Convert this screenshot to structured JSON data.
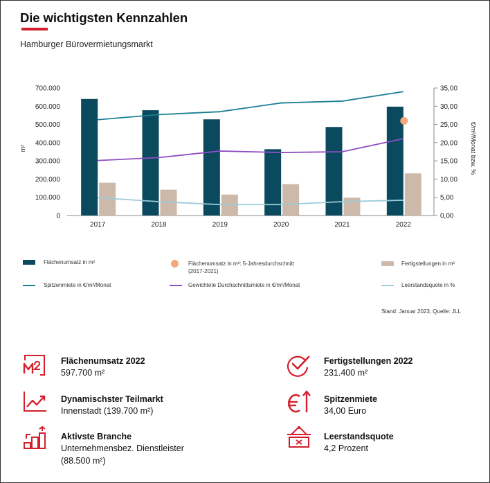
{
  "header": {
    "title": "Die wichtigsten Kennzahlen",
    "subtitle": "Hamburger Bürovermietungsmarkt"
  },
  "colors": {
    "accent": "#d21f2b",
    "umsatz": "#0b4a5e",
    "fertig": "#cdb9aa",
    "spitze": "#1b7f94",
    "durchschnitt": "#8e4fc4",
    "leerstand": "#9ccbd8",
    "avg_point": "#f3a97a"
  },
  "chart_data": {
    "type": "bar",
    "categories": [
      "2017",
      "2018",
      "2019",
      "2020",
      "2021",
      "2022"
    ],
    "ylabel": "m²",
    "y2label": "€/m²/Monat bzw. %",
    "ylim": [
      0,
      700000
    ],
    "y2lim": [
      0,
      35
    ],
    "y_ticks": [
      "0",
      "100.000",
      "200.000",
      "300.000",
      "400.000",
      "500.000",
      "600.000",
      "700.000"
    ],
    "y2_ticks": [
      "0,00",
      "5,00",
      "10,00",
      "15,00",
      "20,00",
      "25,00",
      "30,00",
      "35,00"
    ],
    "series": [
      {
        "name": "Flächenumsatz in m²",
        "kind": "bar",
        "axis": "left",
        "values": [
          640000,
          578000,
          528000,
          364000,
          486000,
          597700
        ]
      },
      {
        "name": "Fertigstellungen in m²",
        "kind": "bar",
        "axis": "left",
        "values": [
          180000,
          142000,
          115000,
          172000,
          98000,
          231400
        ]
      },
      {
        "name": "Spitzenmiete in €/m²/Monat",
        "kind": "line",
        "axis": "right",
        "values": [
          26.3,
          27.7,
          28.5,
          30.9,
          31.4,
          34.0
        ]
      },
      {
        "name": "Gewichtete Durchschnittsmiete in €/m²/Monat",
        "kind": "line",
        "axis": "right",
        "values": [
          15.1,
          15.9,
          17.7,
          17.3,
          17.5,
          21.1
        ]
      },
      {
        "name": "Leerstandsquote in %",
        "kind": "line",
        "axis": "right",
        "values": [
          4.9,
          3.8,
          3.0,
          3.0,
          3.8,
          4.2
        ]
      },
      {
        "name": "Flächenumsatz in m²: 5-Jahresdurchschnitt (2017-2021)",
        "kind": "point",
        "axis": "left",
        "category": "2022",
        "value": 520000
      }
    ],
    "legend": [
      {
        "label": "Flächenumsatz in m²",
        "symbol": "bar",
        "color": "#0b4a5e"
      },
      {
        "label": "Flächenumsatz in m²: 5-Jahresdurchschnitt\n(2017-2021)",
        "symbol": "dot",
        "color": "#f3a97a"
      },
      {
        "label": "Fertigstellungen in m²",
        "symbol": "bar",
        "color": "#cdb9aa"
      },
      {
        "label": "Spitzenmiete in €/m²/Monat",
        "symbol": "line",
        "color": "#1b7f94"
      },
      {
        "label": "Gewichtete Durchschnittsmiete in €/m²/Monat",
        "symbol": "line",
        "color": "#8e4fc4"
      },
      {
        "label": "Leerstandsquote in %",
        "symbol": "line",
        "color": "#9ccbd8"
      }
    ],
    "source": "Stand: Januar 2023; Quelle: JLL"
  },
  "kpis": [
    {
      "icon": "m2-icon",
      "label": "Flächenumsatz 2022",
      "value": "597.700 m²"
    },
    {
      "icon": "checkmark-icon",
      "label": "Fertigstellungen 2022",
      "value": "231.400 m²"
    },
    {
      "icon": "trend-line-icon",
      "label": "Dynamischster Teilmarkt",
      "value": "Innenstadt (139.700 m²)"
    },
    {
      "icon": "euro-up-icon",
      "label": "Spitzenmiete",
      "value": "34,00 Euro"
    },
    {
      "icon": "bar-steps-icon",
      "label": "Aktivste Branche",
      "value": "Unternehmensbez. Dienstleister\n(88.500 m²)"
    },
    {
      "icon": "vacancy-sign-icon",
      "label": "Leerstandsquote",
      "value": "4,2 Prozent"
    }
  ]
}
